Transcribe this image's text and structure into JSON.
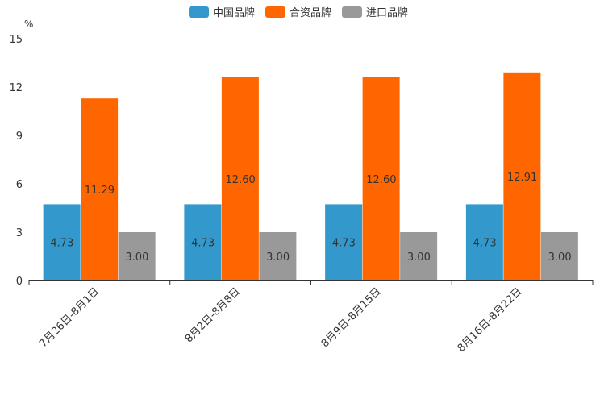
{
  "chart_data": {
    "type": "bar",
    "unit_label": "%",
    "categories": [
      "7月26日-8月1日",
      "8月2日-8月8日",
      "8月9日-8月15日",
      "8月16日-8月22日"
    ],
    "series": [
      {
        "name": "中国品牌",
        "color": "#3399cc",
        "values": [
          4.73,
          4.73,
          4.73,
          4.73
        ],
        "labels": [
          "4.73",
          "4.73",
          "4.73",
          "4.73"
        ]
      },
      {
        "name": "合资品牌",
        "color": "#ff6600",
        "values": [
          11.29,
          12.6,
          12.6,
          12.91
        ],
        "labels": [
          "11.29",
          "12.60",
          "12.60",
          "12.91"
        ]
      },
      {
        "name": "进口品牌",
        "color": "#999999",
        "values": [
          3.0,
          3.0,
          3.0,
          3.0
        ],
        "labels": [
          "3.00",
          "3.00",
          "3.00",
          "3.00"
        ]
      }
    ],
    "ylim": [
      0,
      15
    ],
    "yticks": [
      0,
      3,
      6,
      9,
      12,
      15
    ],
    "ytick_labels": [
      "0",
      "3",
      "6",
      "9",
      "12",
      "15"
    ],
    "legend_position": "top-center",
    "grid": false
  }
}
